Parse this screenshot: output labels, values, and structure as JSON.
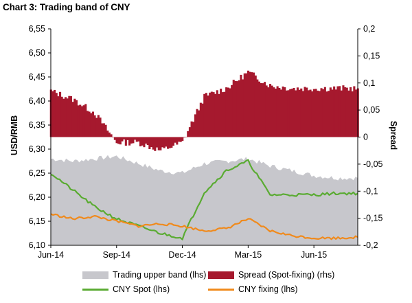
{
  "chart_data": {
    "type": "line",
    "title": "Chart 3: Trading band of CNY",
    "ylabel": "USD/RMB",
    "y2label": "Spread",
    "xlabel": "",
    "x_tick_labels": [
      "Jun-14",
      "Sep-14",
      "Dec-14",
      "Mar-15",
      "Jun-15"
    ],
    "x": [
      "Jun-14",
      "Jul-14",
      "Aug-14",
      "Sep-14",
      "Oct-14",
      "Nov-14",
      "Dec-14",
      "Jan-15",
      "Feb-15",
      "Mar-15",
      "Apr-15",
      "May-15",
      "Jun-15",
      "Jul-15",
      "Aug-15"
    ],
    "ylim": [
      6.1,
      6.55
    ],
    "y_ticks": [
      "6,10",
      "6,15",
      "6,20",
      "6,25",
      "6,30",
      "6,35",
      "6,40",
      "6,45",
      "6,50",
      "6,55"
    ],
    "y2lim": [
      -0.2,
      0.2
    ],
    "y2_ticks": [
      "-0,2",
      "-0,15",
      "-0,1",
      "-0,05",
      "0",
      "0,05",
      "0,1",
      "0,15",
      "0,2"
    ],
    "grid": false,
    "legend_position": "bottom",
    "series": [
      {
        "name": "Trading upper band (lhs)",
        "kind": "area",
        "axis": "left",
        "color": "#c7c7cc",
        "values": [
          6.28,
          6.275,
          6.28,
          6.285,
          6.27,
          6.255,
          6.25,
          6.27,
          6.275,
          6.28,
          6.265,
          6.255,
          6.245,
          6.24,
          6.24
        ]
      },
      {
        "name": "Spread (Spot-fixing) (rhs)",
        "kind": "bar",
        "axis": "right",
        "color": "#a6192e",
        "values": [
          0.085,
          0.07,
          0.045,
          -0.01,
          -0.01,
          -0.025,
          -0.01,
          0.075,
          0.09,
          0.12,
          0.095,
          0.09,
          0.09,
          0.09,
          0.09
        ]
      },
      {
        "name": "CNY Spot (lhs)",
        "kind": "line",
        "axis": "left",
        "color": "#5aab32",
        "values": [
          6.25,
          6.215,
          6.18,
          6.155,
          6.14,
          6.125,
          6.115,
          6.21,
          6.255,
          6.275,
          6.205,
          6.205,
          6.205,
          6.208,
          6.208
        ]
      },
      {
        "name": "CNY fixing (lhs)",
        "kind": "line",
        "axis": "left",
        "color": "#f08a1c",
        "values": [
          6.165,
          6.155,
          6.16,
          6.15,
          6.14,
          6.145,
          6.14,
          6.13,
          6.135,
          6.155,
          6.13,
          6.12,
          6.115,
          6.115,
          6.117
        ]
      }
    ]
  }
}
